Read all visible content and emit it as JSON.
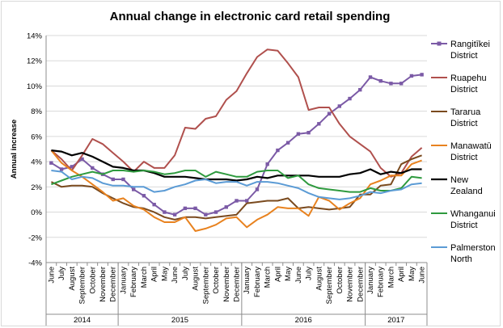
{
  "chart_data": {
    "type": "line",
    "title": "Annual change in electronic card retail spending",
    "ylabel": "Annual increase",
    "xlabel": "",
    "ylim": [
      -0.04,
      0.14
    ],
    "yticks": [
      "-4%",
      "-2%",
      "0%",
      "2%",
      "4%",
      "6%",
      "8%",
      "10%",
      "12%",
      "14%"
    ],
    "x": [
      "June",
      "July",
      "August",
      "September",
      "October",
      "November",
      "December",
      "January",
      "February",
      "March",
      "April",
      "May",
      "June",
      "July",
      "August",
      "September",
      "October",
      "November",
      "December",
      "January",
      "February",
      "March",
      "April",
      "May",
      "June",
      "July",
      "August",
      "September",
      "October",
      "November",
      "December",
      "January",
      "February",
      "March",
      "April",
      "May",
      "June"
    ],
    "years": [
      {
        "label": "2014",
        "start": 0,
        "end": 6
      },
      {
        "label": "2015",
        "start": 7,
        "end": 18
      },
      {
        "label": "2016",
        "start": 19,
        "end": 30
      },
      {
        "label": "2017",
        "start": 31,
        "end": 36
      }
    ],
    "grid": true,
    "legend_position": "right",
    "series": [
      {
        "name": "Rangitīkei District",
        "color": "#7b5aa6",
        "marker": "square",
        "values": [
          0.039,
          0.034,
          0.036,
          0.042,
          0.035,
          0.03,
          0.026,
          0.026,
          0.018,
          0.013,
          0.006,
          0.0,
          -0.002,
          0.003,
          0.003,
          -0.002,
          0.0,
          0.004,
          0.009,
          0.009,
          0.018,
          0.038,
          0.049,
          0.055,
          0.062,
          0.063,
          0.07,
          0.078,
          0.084,
          0.09,
          0.097,
          0.107,
          0.104,
          0.102,
          0.102,
          0.108,
          0.109
        ]
      },
      {
        "name": "Ruapehu District",
        "color": "#b0504d",
        "values": [
          0.049,
          0.042,
          0.033,
          0.045,
          0.058,
          0.054,
          0.047,
          0.04,
          0.032,
          0.04,
          0.035,
          0.035,
          0.045,
          0.067,
          0.066,
          0.074,
          0.076,
          0.089,
          0.096,
          0.11,
          0.123,
          0.129,
          0.128,
          0.118,
          0.107,
          0.081,
          0.083,
          0.083,
          0.07,
          0.06,
          0.054,
          0.048,
          0.035,
          0.028,
          0.031,
          0.044,
          0.051
        ]
      },
      {
        "name": "Tararua District",
        "color": "#7a4a1e",
        "values": [
          0.024,
          0.02,
          0.021,
          0.021,
          0.02,
          0.015,
          0.011,
          0.007,
          0.004,
          0.003,
          0.0,
          -0.004,
          -0.006,
          -0.004,
          -0.004,
          -0.005,
          -0.004,
          -0.003,
          -0.002,
          0.007,
          0.008,
          0.009,
          0.009,
          0.011,
          0.003,
          0.004,
          0.003,
          0.002,
          0.003,
          0.004,
          0.014,
          0.014,
          0.021,
          0.022,
          0.038,
          0.042,
          0.045
        ]
      },
      {
        "name": "Manawatū District",
        "color": "#e8821f",
        "values": [
          0.049,
          0.039,
          0.033,
          0.028,
          0.022,
          0.016,
          0.009,
          0.011,
          0.005,
          0.002,
          -0.004,
          -0.008,
          -0.008,
          -0.004,
          -0.015,
          -0.013,
          -0.01,
          -0.005,
          -0.004,
          -0.012,
          -0.006,
          -0.002,
          0.004,
          0.003,
          0.003,
          -0.003,
          0.012,
          0.009,
          0.002,
          0.007,
          0.011,
          0.022,
          0.025,
          0.029,
          0.029,
          0.038,
          0.041
        ]
      },
      {
        "name": "New Zealand",
        "color": "#000000",
        "width": 2.2,
        "values": [
          0.049,
          0.048,
          0.045,
          0.047,
          0.044,
          0.04,
          0.036,
          0.035,
          0.033,
          0.033,
          0.031,
          0.028,
          0.028,
          0.028,
          0.027,
          0.026,
          0.026,
          0.026,
          0.025,
          0.026,
          0.028,
          0.027,
          0.029,
          0.029,
          0.029,
          0.029,
          0.028,
          0.028,
          0.028,
          0.03,
          0.031,
          0.034,
          0.03,
          0.032,
          0.031,
          0.034,
          0.034
        ]
      },
      {
        "name": "Whanganui District",
        "color": "#2e9a3e",
        "values": [
          0.022,
          0.025,
          0.028,
          0.03,
          0.032,
          0.03,
          0.033,
          0.033,
          0.032,
          0.033,
          0.032,
          0.03,
          0.031,
          0.033,
          0.033,
          0.028,
          0.032,
          0.03,
          0.028,
          0.028,
          0.032,
          0.033,
          0.033,
          0.027,
          0.029,
          0.022,
          0.019,
          0.018,
          0.017,
          0.016,
          0.016,
          0.019,
          0.017,
          0.017,
          0.019,
          0.028,
          0.027
        ]
      },
      {
        "name": "Palmerston North",
        "color": "#5b9bd5",
        "values": [
          0.033,
          0.032,
          0.026,
          0.028,
          0.027,
          0.023,
          0.021,
          0.021,
          0.02,
          0.02,
          0.016,
          0.017,
          0.02,
          0.022,
          0.025,
          0.026,
          0.023,
          0.024,
          0.024,
          0.021,
          0.024,
          0.024,
          0.023,
          0.021,
          0.019,
          0.015,
          0.012,
          0.011,
          0.01,
          0.011,
          0.013,
          0.016,
          0.015,
          0.017,
          0.018,
          0.022,
          0.023
        ]
      }
    ]
  }
}
